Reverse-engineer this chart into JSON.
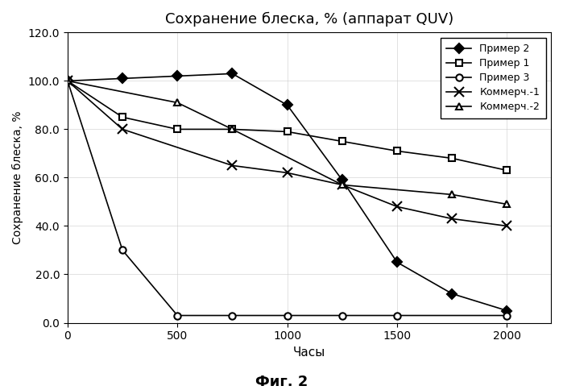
{
  "title": "Сохранение блеска, % (аппарат QUV)",
  "xlabel": "Часы",
  "ylabel": "Сохранение блеска, %",
  "caption": "Фиг. 2",
  "xlim": [
    0,
    2200
  ],
  "ylim": [
    0,
    120
  ],
  "xticks": [
    0,
    500,
    1000,
    1500,
    2000
  ],
  "yticks": [
    0.0,
    20.0,
    40.0,
    60.0,
    80.0,
    100.0,
    120.0
  ],
  "series": [
    {
      "label": "Пример 2",
      "x": [
        0,
        250,
        500,
        750,
        1000,
        1250,
        1500,
        1750,
        2000
      ],
      "y": [
        100,
        101,
        102,
        103,
        90,
        59,
        25,
        12,
        5
      ],
      "color": "#000000",
      "marker": "D",
      "markersize": 6,
      "linestyle": "-"
    },
    {
      "label": "Пример 1",
      "x": [
        0,
        250,
        500,
        750,
        1000,
        1250,
        1500,
        1750,
        2000
      ],
      "y": [
        100,
        85,
        80,
        80,
        79,
        75,
        71,
        68,
        63
      ],
      "color": "#000000",
      "marker": "s",
      "markersize": 6,
      "linestyle": "-"
    },
    {
      "label": "Пример 3",
      "x": [
        0,
        250,
        500,
        750,
        1000,
        1250,
        1500,
        2000
      ],
      "y": [
        100,
        30,
        3,
        3,
        3,
        3,
        3,
        3
      ],
      "color": "#000000",
      "marker": "o",
      "markersize": 6,
      "linestyle": "-"
    },
    {
      "label": "Коммерч.-1",
      "x": [
        0,
        250,
        750,
        1000,
        1250,
        1500,
        1750,
        2000
      ],
      "y": [
        100,
        80,
        65,
        62,
        57,
        48,
        43,
        40
      ],
      "color": "#000000",
      "marker": "x",
      "markersize": 8,
      "linestyle": "-"
    },
    {
      "label": "Коммерч.-2",
      "x": [
        0,
        500,
        750,
        1250,
        1750,
        2000
      ],
      "y": [
        100,
        91,
        80,
        57,
        53,
        49
      ],
      "color": "#000000",
      "marker": "^",
      "markersize": 6,
      "linestyle": "-"
    }
  ]
}
